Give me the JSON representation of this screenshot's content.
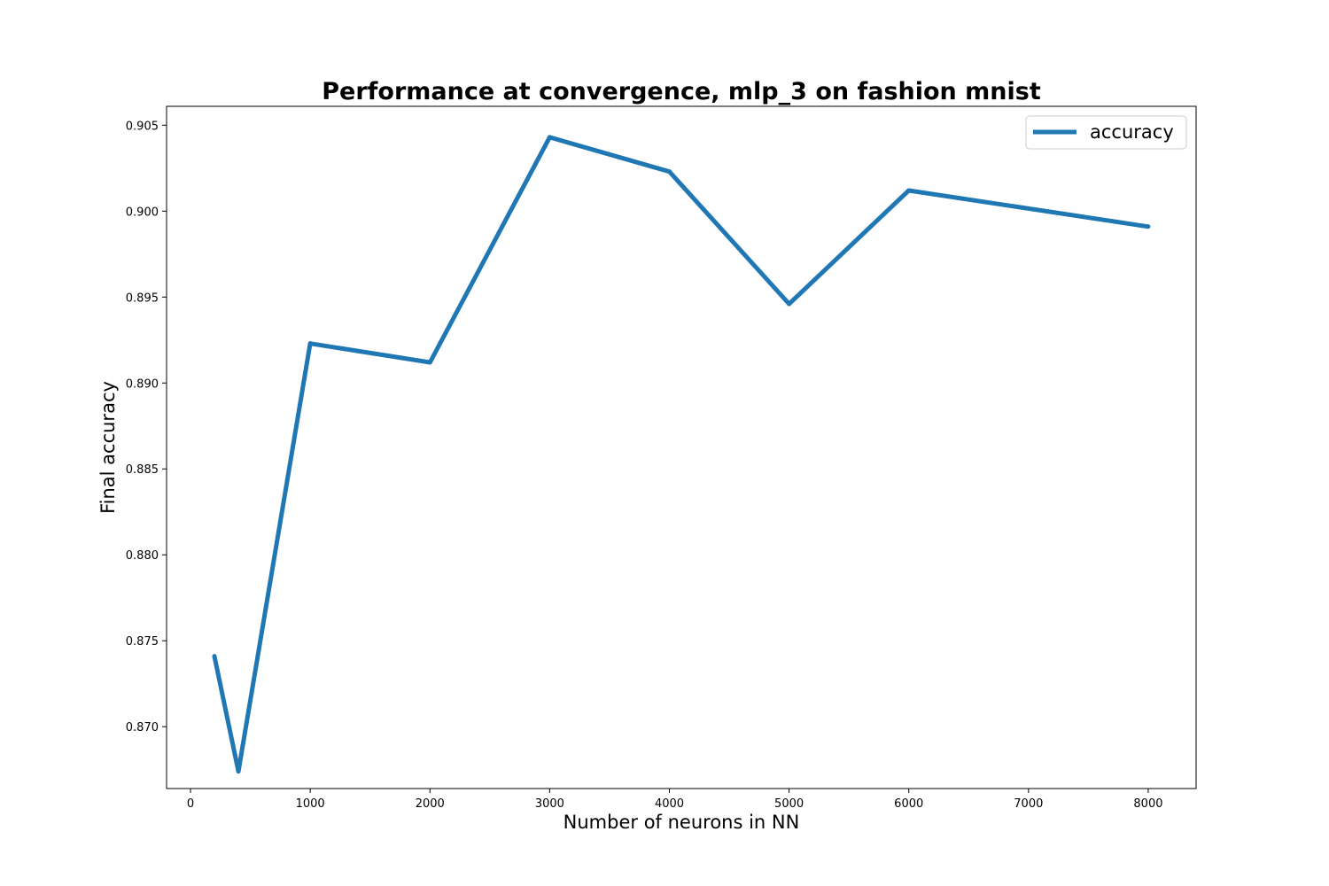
{
  "chart_data": {
    "type": "line",
    "title": "Performance at convergence, mlp_3 on fashion mnist",
    "xlabel": "Number of neurons in NN",
    "ylabel": "Final accuracy",
    "xlim": [
      -200,
      8400
    ],
    "ylim": [
      0.8664,
      0.9061
    ],
    "xticks": [
      0,
      1000,
      2000,
      3000,
      4000,
      5000,
      6000,
      7000,
      8000
    ],
    "xtick_labels": [
      "0",
      "1000",
      "2000",
      "3000",
      "4000",
      "5000",
      "6000",
      "7000",
      "8000"
    ],
    "yticks": [
      0.87,
      0.875,
      0.88,
      0.885,
      0.89,
      0.895,
      0.9,
      0.905
    ],
    "ytick_labels": [
      "0.870",
      "0.875",
      "0.880",
      "0.885",
      "0.890",
      "0.895",
      "0.900",
      "0.905"
    ],
    "grid": false,
    "legend_position": "top-right",
    "series": [
      {
        "name": "accuracy",
        "color": "#1f77b4",
        "x": [
          200,
          400,
          1000,
          2000,
          3000,
          4000,
          5000,
          6000,
          8000
        ],
        "y": [
          0.8741,
          0.8674,
          0.8923,
          0.8912,
          0.9043,
          0.9023,
          0.8946,
          0.9012,
          0.8991
        ]
      }
    ]
  }
}
